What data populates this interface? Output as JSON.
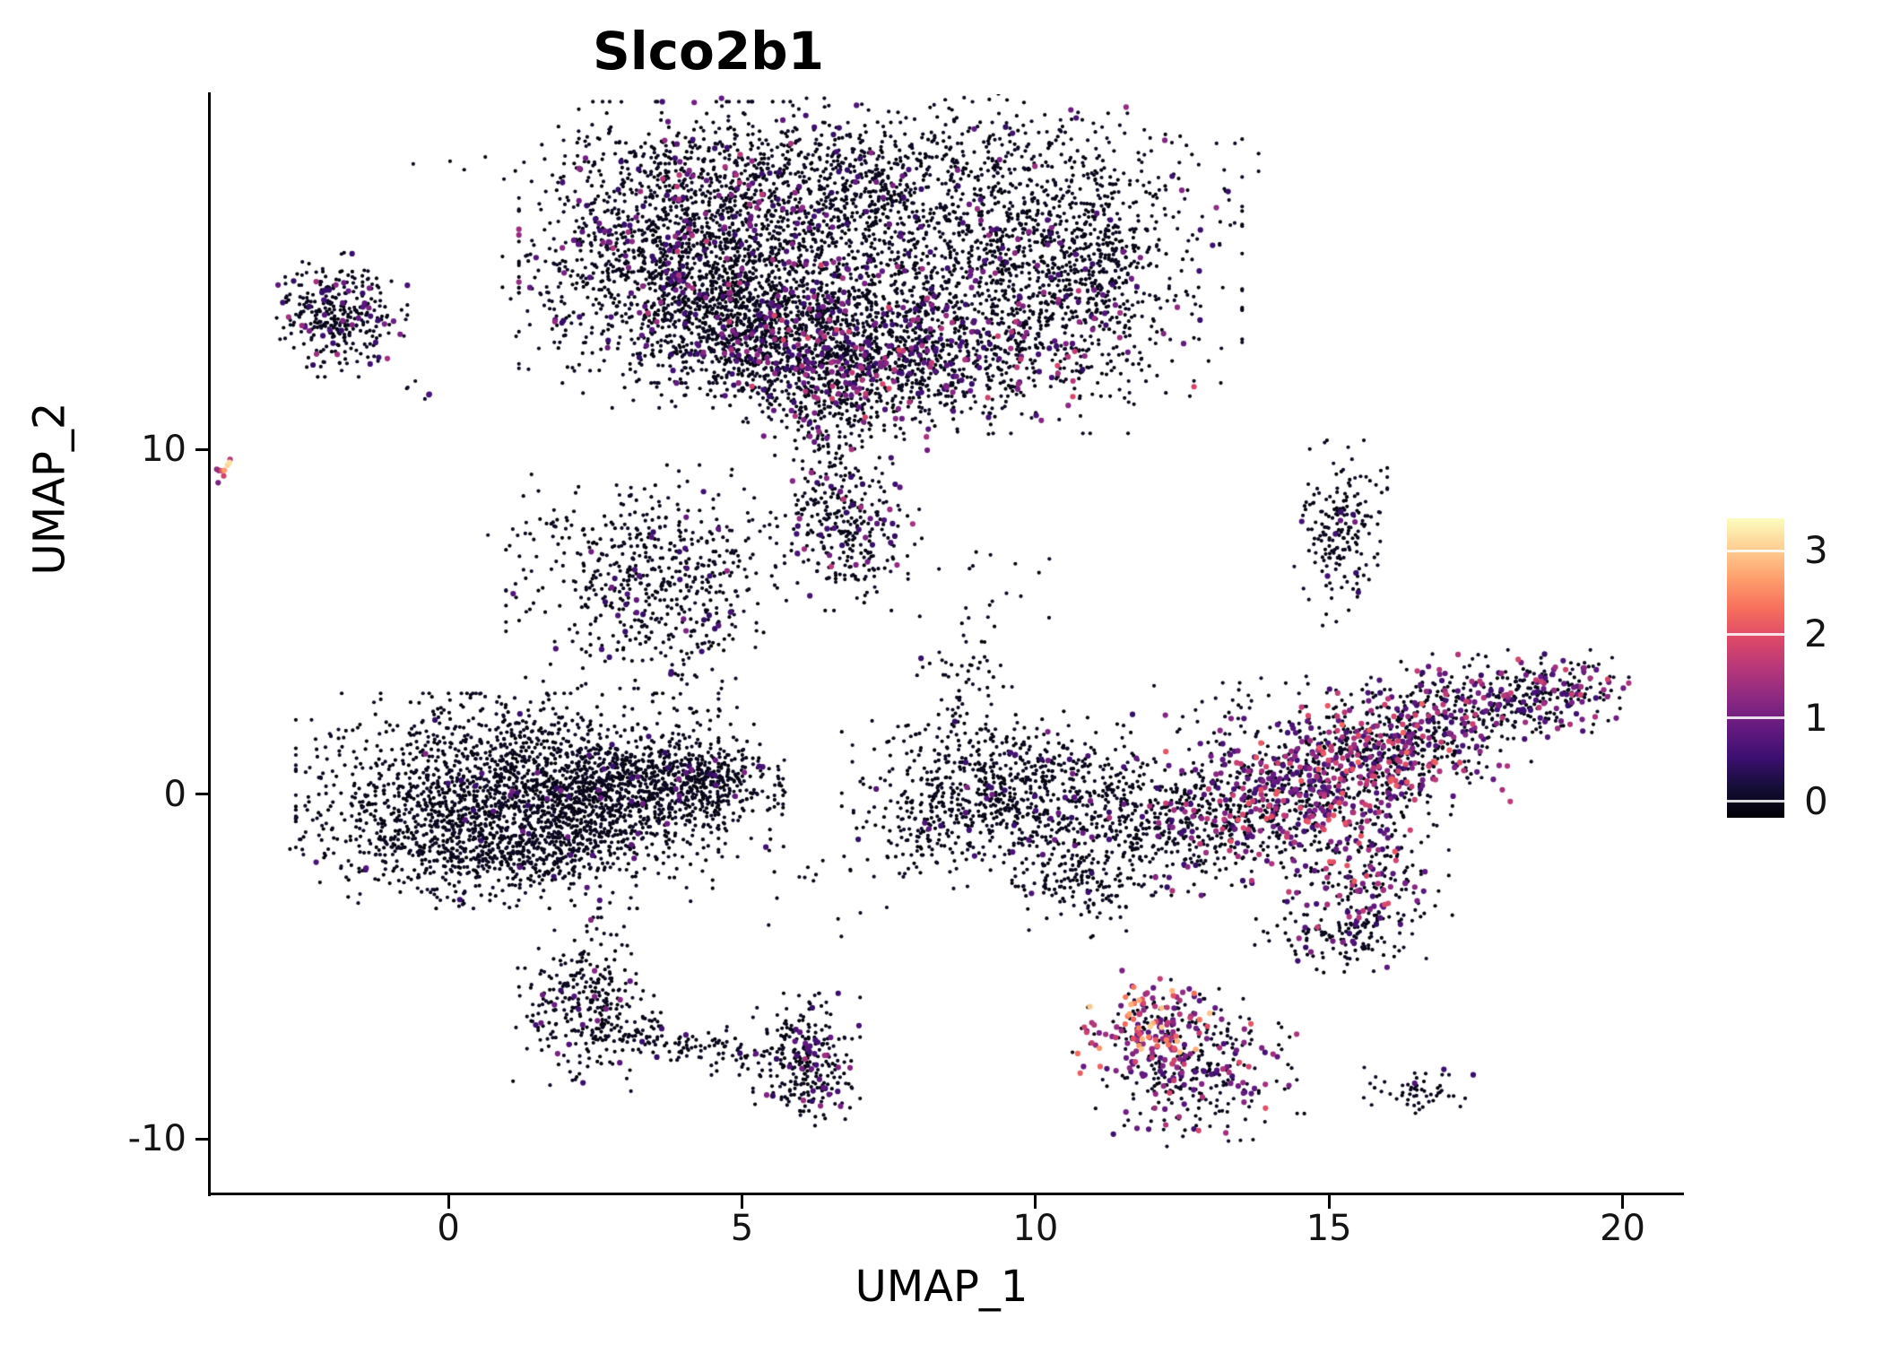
{
  "title": "Slco2b1",
  "axes": {
    "x": {
      "label": "UMAP_1",
      "ticks": [
        0,
        5,
        10,
        15,
        20
      ],
      "range": [
        -4.05,
        21.0
      ]
    },
    "y": {
      "label": "UMAP_2",
      "ticks": [
        10,
        0,
        -10
      ],
      "range": [
        -11.56,
        20.3
      ]
    }
  },
  "legend": {
    "tick_values": [
      3,
      2,
      1,
      0
    ],
    "range": [
      0,
      3.5
    ]
  },
  "colors": {
    "background": "#ffffff",
    "axis": "#000000",
    "text": "#141414"
  },
  "chart_data": {
    "type": "scatter",
    "title": "Slco2b1",
    "xlabel": "UMAP_1",
    "ylabel": "UMAP_2",
    "xlim": [
      -4.05,
      21.0
    ],
    "ylim": [
      -11.56,
      20.3
    ],
    "grid": false,
    "legend_position": "right",
    "color_scale": {
      "name": "magma",
      "domain": [
        0,
        3.4
      ],
      "stops": [
        [
          0.0,
          "#000004"
        ],
        [
          0.1,
          "#140e36"
        ],
        [
          0.2,
          "#3b0f70"
        ],
        [
          0.3,
          "#641a80"
        ],
        [
          0.4,
          "#8c2981"
        ],
        [
          0.5,
          "#b73779"
        ],
        [
          0.6,
          "#de4968"
        ],
        [
          0.7,
          "#f7705c"
        ],
        [
          0.8,
          "#fe9f6d"
        ],
        [
          0.9,
          "#fecf92"
        ],
        [
          1.0,
          "#fcfdbf"
        ]
      ]
    },
    "point_radius": 2.1,
    "point_radius_expressing": 3.1,
    "seed": 42,
    "clusters": [
      {
        "name": "top-left-edge",
        "cx": 2.6,
        "cy": 14.8,
        "sx": 0.7,
        "sy": 1.4,
        "n": 120,
        "p": 0.05,
        "v0": 0.6,
        "v1": 1.2
      },
      {
        "name": "top-left-lobe",
        "cx": 4.2,
        "cy": 16.0,
        "sx": 1.25,
        "sy": 1.7,
        "n": 1600,
        "p": 0.1,
        "v0": 0.6,
        "v1": 1.8
      },
      {
        "name": "top-left-lower",
        "cx": 5.0,
        "cy": 13.6,
        "sx": 0.95,
        "sy": 1.0,
        "n": 820,
        "p": 0.08,
        "v0": 0.6,
        "v1": 1.5
      },
      {
        "name": "top-mid-lower",
        "cx": 6.8,
        "cy": 13.0,
        "sx": 1.0,
        "sy": 1.1,
        "n": 620,
        "p": 0.18,
        "v0": 0.6,
        "v1": 2.0
      },
      {
        "name": "top-mid-upper",
        "cx": 6.6,
        "cy": 17.3,
        "sx": 0.9,
        "sy": 1.2,
        "n": 300,
        "p": 0.06,
        "v0": 0.6,
        "v1": 1.3
      },
      {
        "name": "top-right-lobe",
        "cx": 9.2,
        "cy": 16.1,
        "sx": 1.8,
        "sy": 1.9,
        "n": 1500,
        "p": 0.06,
        "v0": 0.6,
        "v1": 1.5
      },
      {
        "name": "top-right-lower",
        "cx": 9.1,
        "cy": 13.1,
        "sx": 1.5,
        "sy": 1.1,
        "n": 700,
        "p": 0.15,
        "v0": 0.6,
        "v1": 2.0
      },
      {
        "name": "top-right-tip",
        "cx": 10.9,
        "cy": 15.4,
        "sx": 0.5,
        "sy": 1.0,
        "n": 200,
        "p": 0.04,
        "v0": 0.6,
        "v1": 1.2
      },
      {
        "name": "top-upper-band",
        "cx": 6.6,
        "cy": 18.4,
        "sx": 3.0,
        "sy": 0.45,
        "n": 200,
        "p": 0.04,
        "v0": 0.6,
        "v1": 1.2
      },
      {
        "name": "top-bottom-ext",
        "cx": 6.8,
        "cy": 11.7,
        "sx": 0.75,
        "sy": 1.0,
        "n": 300,
        "p": 0.12,
        "v0": 0.6,
        "v1": 1.8
      },
      {
        "name": "top-tail-strand",
        "cx": 6.4,
        "cy": 9.7,
        "sx": 0.35,
        "sy": 1.1,
        "n": 90,
        "p": 0.1,
        "v0": 0.6,
        "v1": 1.5
      },
      {
        "name": "tail-blob",
        "cx": 6.8,
        "cy": 7.6,
        "sx": 0.55,
        "sy": 0.95,
        "n": 260,
        "p": 0.12,
        "v0": 0.6,
        "v1": 1.8
      },
      {
        "name": "left-small",
        "cx": -1.9,
        "cy": 13.9,
        "sx": 0.5,
        "sy": 0.75,
        "n": 330,
        "p": 0.1,
        "v0": 0.6,
        "v1": 1.6
      },
      {
        "name": "left-tiny-pair",
        "cx": -0.7,
        "cy": 11.6,
        "sx": 0.45,
        "sy": 0.2,
        "n": 6,
        "p": 0.15,
        "v0": 0.7,
        "v1": 1.2
      },
      {
        "name": "far-left-hot",
        "cx": -3.82,
        "cy": 9.42,
        "sx": 0.13,
        "sy": 0.22,
        "n": 9,
        "p": 0.75,
        "v0": 1.2,
        "v1": 3.2
      },
      {
        "name": "mid-left",
        "cx": 3.5,
        "cy": 6.3,
        "sx": 1.05,
        "sy": 1.35,
        "n": 560,
        "p": 0.06,
        "v0": 0.6,
        "v1": 1.4
      },
      {
        "name": "mid-left-strays",
        "cx": 1.3,
        "cy": 7.7,
        "sx": 0.55,
        "sy": 0.4,
        "n": 14,
        "p": 0.05,
        "v0": 0.7,
        "v1": 1.0
      },
      {
        "name": "mid-strand",
        "cx": 4.2,
        "cy": 3.2,
        "sx": 0.35,
        "sy": 1.5,
        "n": 45,
        "p": 0.05,
        "v0": 0.6,
        "v1": 1.0
      },
      {
        "name": "left-main-core",
        "cx": 1.0,
        "cy": -0.2,
        "sx": 1.5,
        "sy": 1.3,
        "n": 2000,
        "p": 0.02,
        "v0": 0.6,
        "v1": 1.3
      },
      {
        "name": "left-main-right",
        "cx": 3.3,
        "cy": 0.1,
        "sx": 1.0,
        "sy": 0.8,
        "n": 700,
        "p": 0.03,
        "v0": 0.6,
        "v1": 1.3
      },
      {
        "name": "left-main-tip",
        "cx": 4.4,
        "cy": 0.5,
        "sx": 0.55,
        "sy": 0.45,
        "n": 180,
        "p": 0.03,
        "v0": 0.6,
        "v1": 1.2
      },
      {
        "name": "left-main-bottom",
        "cx": 0.9,
        "cy": -1.7,
        "sx": 1.5,
        "sy": 0.5,
        "n": 280,
        "p": 0.02,
        "v0": 0.6,
        "v1": 1.0
      },
      {
        "name": "left-main-above",
        "cx": 0.0,
        "cy": 1.7,
        "sx": 0.8,
        "sy": 0.45,
        "n": 30,
        "p": 0.03,
        "v0": 0.6,
        "v1": 1.0
      },
      {
        "name": "left-main-strays",
        "cx": 5.1,
        "cy": 0.6,
        "sx": 0.35,
        "sy": 0.3,
        "n": 12,
        "p": 0.05,
        "v0": 0.6,
        "v1": 1.0
      },
      {
        "name": "hook-left",
        "cx": 2.3,
        "cy": -6.1,
        "sx": 0.5,
        "sy": 1.05,
        "n": 300,
        "p": 0.06,
        "v0": 0.6,
        "v1": 1.4
      },
      {
        "name": "hook-arc-1",
        "cx": 3.2,
        "cy": -6.9,
        "sx": 0.4,
        "sy": 0.28,
        "n": 45,
        "p": 0.04,
        "v0": 0.6,
        "v1": 1.0
      },
      {
        "name": "hook-arc-2",
        "cx": 4.1,
        "cy": -7.35,
        "sx": 0.42,
        "sy": 0.25,
        "n": 45,
        "p": 0.04,
        "v0": 0.6,
        "v1": 1.0
      },
      {
        "name": "hook-arc-3",
        "cx": 5.0,
        "cy": -7.55,
        "sx": 0.45,
        "sy": 0.25,
        "n": 55,
        "p": 0.05,
        "v0": 0.6,
        "v1": 1.0
      },
      {
        "name": "hook-tip",
        "cx": 6.1,
        "cy": -7.7,
        "sx": 0.38,
        "sy": 0.8,
        "n": 260,
        "p": 0.12,
        "v0": 0.6,
        "v1": 1.6
      },
      {
        "name": "bottom-hot-core",
        "cx": 11.95,
        "cy": -6.8,
        "sx": 0.55,
        "sy": 0.7,
        "n": 200,
        "p": 0.55,
        "v0": 1.0,
        "v1": 3.1
      },
      {
        "name": "bottom-hot-lower",
        "cx": 12.8,
        "cy": -8.1,
        "sx": 0.75,
        "sy": 0.9,
        "n": 280,
        "p": 0.3,
        "v0": 0.7,
        "v1": 2.2
      },
      {
        "name": "bottom-right-dash",
        "cx": 16.6,
        "cy": -8.6,
        "sx": 0.42,
        "sy": 0.3,
        "n": 55,
        "p": 0.05,
        "v0": 0.6,
        "v1": 1.0
      },
      {
        "name": "right-comma",
        "cx": 15.2,
        "cy": 7.5,
        "sx": 0.33,
        "sy": 1.15,
        "n": 190,
        "p": 0.05,
        "v0": 0.6,
        "v1": 1.2
      },
      {
        "name": "wing-hook",
        "cx": 8.85,
        "cy": 3.2,
        "sx": 0.38,
        "sy": 0.95,
        "n": 60,
        "p": 0.05,
        "v0": 0.6,
        "v1": 1.0
      },
      {
        "name": "wing-left-a",
        "cx": 9.1,
        "cy": 0.4,
        "sx": 1.0,
        "sy": 1.0,
        "n": 420,
        "p": 0.04,
        "v0": 0.6,
        "v1": 1.3
      },
      {
        "name": "wing-left-b",
        "cx": 10.7,
        "cy": -0.4,
        "sx": 1.1,
        "sy": 0.95,
        "n": 480,
        "p": 0.05,
        "v0": 0.6,
        "v1": 1.3
      },
      {
        "name": "wing-left-tip",
        "cx": 10.8,
        "cy": -2.6,
        "sx": 0.5,
        "sy": 0.65,
        "n": 130,
        "p": 0.05,
        "v0": 0.6,
        "v1": 1.2
      },
      {
        "name": "wing-left-edge",
        "cx": 8.1,
        "cy": -1.1,
        "sx": 0.5,
        "sy": 0.7,
        "n": 90,
        "p": 0.04,
        "v0": 0.6,
        "v1": 1.0
      },
      {
        "name": "wing-band-a",
        "cx": 13.0,
        "cy": -0.9,
        "sx": 0.85,
        "sy": 0.85,
        "n": 380,
        "p": 0.18,
        "v0": 0.6,
        "v1": 1.8
      },
      {
        "name": "wing-band-b",
        "cx": 14.5,
        "cy": 0.15,
        "sx": 0.95,
        "sy": 0.85,
        "n": 520,
        "p": 0.38,
        "v0": 0.7,
        "v1": 2.2
      },
      {
        "name": "wing-band-c",
        "cx": 16.0,
        "cy": 1.2,
        "sx": 0.9,
        "sy": 0.75,
        "n": 480,
        "p": 0.4,
        "v0": 0.7,
        "v1": 2.3
      },
      {
        "name": "wing-arm",
        "cx": 17.4,
        "cy": 2.5,
        "sx": 0.95,
        "sy": 0.65,
        "n": 320,
        "p": 0.25,
        "v0": 0.6,
        "v1": 1.9
      },
      {
        "name": "wing-tip",
        "cx": 18.8,
        "cy": 3.1,
        "sx": 0.55,
        "sy": 0.45,
        "n": 160,
        "p": 0.3,
        "v0": 0.7,
        "v1": 2.0
      },
      {
        "name": "wing-top-scatter",
        "cx": 14.4,
        "cy": 2.6,
        "sx": 1.5,
        "sy": 0.55,
        "n": 60,
        "p": 0.1,
        "v0": 0.6,
        "v1": 1.4
      },
      {
        "name": "wing-spur",
        "cx": 15.6,
        "cy": -2.2,
        "sx": 0.6,
        "sy": 0.95,
        "n": 240,
        "p": 0.35,
        "v0": 0.7,
        "v1": 2.2
      },
      {
        "name": "wing-below",
        "cx": 15.3,
        "cy": -4.1,
        "sx": 0.75,
        "sy": 0.45,
        "n": 130,
        "p": 0.1,
        "v0": 0.6,
        "v1": 1.5
      },
      {
        "name": "mid-bottom-sparse",
        "cx": 6.6,
        "cy": -2.3,
        "sx": 1.0,
        "sy": 0.8,
        "n": 25,
        "p": 0.04,
        "v0": 0.6,
        "v1": 1.0
      },
      {
        "name": "center-sparse",
        "cx": 8.9,
        "cy": 5.9,
        "sx": 0.8,
        "sy": 0.8,
        "n": 15,
        "p": 0.05,
        "v0": 0.6,
        "v1": 1.0
      }
    ]
  }
}
